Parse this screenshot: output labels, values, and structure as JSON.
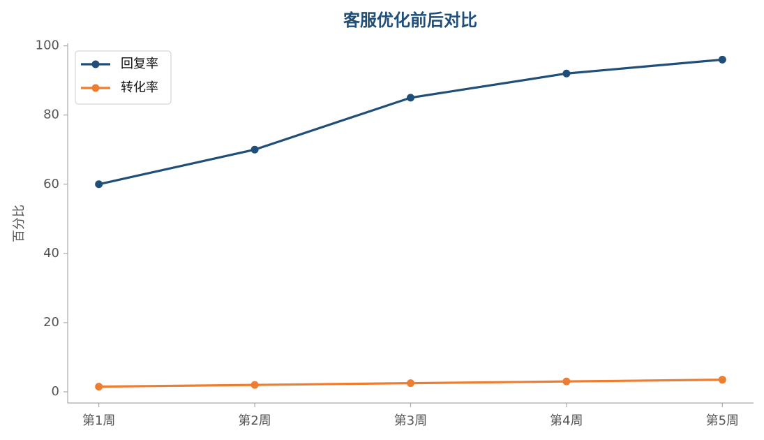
{
  "chart_data": {
    "type": "line",
    "title": "客服优化前后对比",
    "y_label": "百分比",
    "categories": [
      "第1周",
      "第2周",
      "第3周",
      "第4周",
      "第5周"
    ],
    "series": [
      {
        "name": "回复率",
        "color": "#1f4e79",
        "values": [
          60,
          70,
          85,
          92,
          96
        ]
      },
      {
        "name": "转化率",
        "color": "#ed7d31",
        "values": [
          1.5,
          2.0,
          2.5,
          3.0,
          3.5
        ]
      }
    ],
    "ylim": [
      -3.225,
      100.725
    ],
    "yticks": [
      0,
      20,
      40,
      60,
      80,
      100
    ],
    "grid": false,
    "legend": "upper-left"
  }
}
